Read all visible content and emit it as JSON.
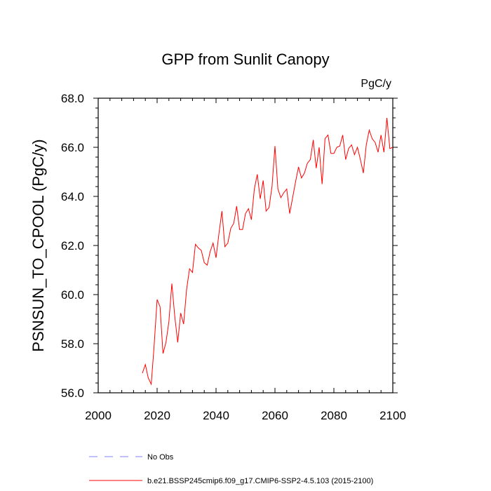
{
  "chart_data": {
    "type": "line",
    "title": "GPP from Sunlit Canopy",
    "units": "PgC/y",
    "ylabel": "PSNSUN_TO_CPOOL  (PgC/y)",
    "xlabel": "",
    "xlim": [
      2000,
      2100
    ],
    "ylim": [
      56.0,
      68.0
    ],
    "x_ticks": [
      "2000",
      "2020",
      "2040",
      "2060",
      "2080",
      "2100"
    ],
    "y_ticks": [
      "56.0",
      "58.0",
      "60.0",
      "62.0",
      "64.0",
      "66.0",
      "68.0"
    ],
    "grid": false,
    "legend": "bottom",
    "series": [
      {
        "name": "b.e21.BSSP245cmip6.f09_g17.CMIP6-SSP2-4.5.103 (2015-2100)",
        "color": "#ff0000",
        "x": [
          2015,
          2016,
          2017,
          2018,
          2019,
          2020,
          2021,
          2022,
          2023,
          2024,
          2025,
          2026,
          2027,
          2028,
          2029,
          2030,
          2031,
          2032,
          2033,
          2034,
          2035,
          2036,
          2037,
          2038,
          2039,
          2040,
          2041,
          2042,
          2043,
          2044,
          2045,
          2046,
          2047,
          2048,
          2049,
          2050,
          2051,
          2052,
          2053,
          2054,
          2055,
          2056,
          2057,
          2058,
          2059,
          2060,
          2061,
          2062,
          2063,
          2064,
          2065,
          2066,
          2067,
          2068,
          2069,
          2070,
          2071,
          2072,
          2073,
          2074,
          2075,
          2076,
          2077,
          2078,
          2079,
          2080,
          2081,
          2082,
          2083,
          2084,
          2085,
          2086,
          2087,
          2088,
          2089,
          2090,
          2091,
          2092,
          2093,
          2094,
          2095,
          2096,
          2097,
          2098,
          2099,
          2100
        ],
        "values": [
          56.8,
          57.15,
          56.6,
          56.35,
          57.95,
          59.8,
          59.5,
          57.6,
          58.05,
          58.9,
          60.45,
          59.1,
          58.05,
          59.25,
          58.8,
          60.2,
          61.05,
          60.9,
          62.05,
          61.9,
          61.8,
          61.3,
          61.2,
          61.75,
          62.1,
          61.5,
          62.5,
          63.4,
          61.95,
          62.1,
          62.7,
          62.9,
          63.6,
          62.65,
          62.65,
          63.3,
          63.5,
          63.05,
          64.3,
          64.9,
          63.9,
          64.65,
          63.4,
          63.55,
          64.4,
          66.05,
          64.3,
          63.95,
          64.15,
          64.3,
          63.3,
          63.95,
          64.6,
          65.2,
          64.75,
          64.95,
          65.35,
          65.5,
          66.3,
          65.15,
          66.0,
          64.5,
          66.35,
          66.5,
          65.75,
          65.75,
          66.0,
          66.05,
          66.5,
          65.5,
          65.95,
          66.1,
          65.7,
          66.0,
          65.5,
          64.95,
          66.1,
          66.7,
          66.35,
          66.2,
          65.8,
          66.5,
          65.8,
          67.2,
          65.95,
          66.0
        ]
      },
      {
        "name": "No Obs",
        "color": "#8080ff",
        "dash": "dashed",
        "x": [],
        "values": []
      }
    ]
  }
}
